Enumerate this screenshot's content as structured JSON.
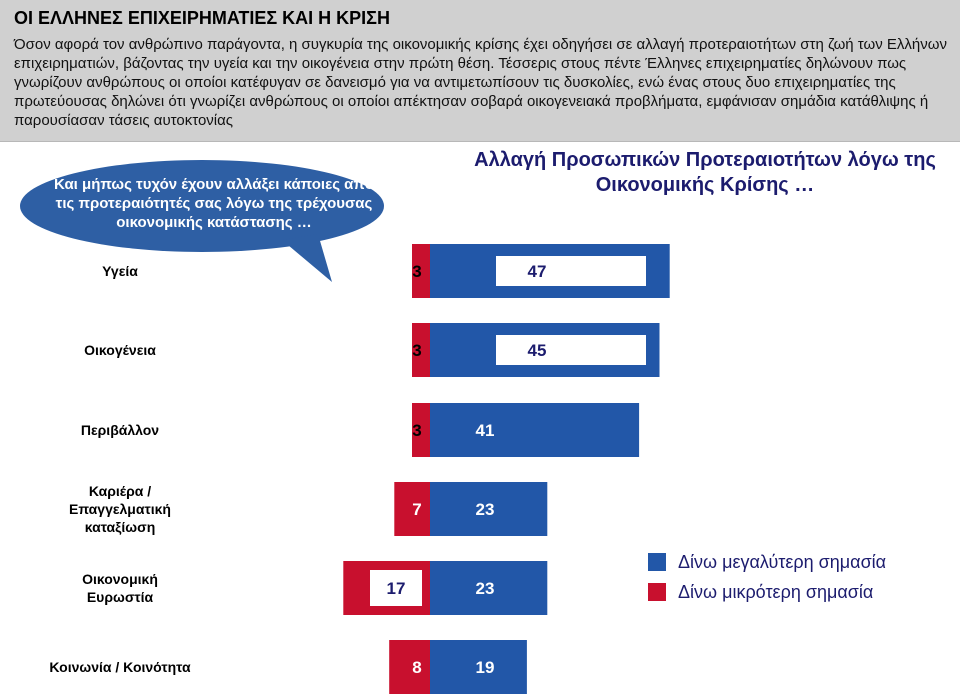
{
  "header": {
    "title": "ΟΙ ΕΛΛΗΝΕΣ ΕΠΙΧΕΙΡΗΜΑΤΙΕΣ ΚΑΙ Η ΚΡΙΣΗ",
    "paragraph1": "Όσον αφορά τον ανθρώπινο παράγοντα, η συγκυρία της οικονομικής κρίσης έχει οδηγήσει σε αλλαγή προτεραιοτήτων στη ζωή των Ελλήνων επιχειρηματιών, βάζοντας την υγεία και την οικογένεια στην πρώτη θέση.",
    "paragraph2": "Τέσσερις στους πέντε Έλληνες επιχειρηματίες δηλώνουν πως γνωρίζουν ανθρώπους οι οποίοι κατέφυγαν σε δανεισμό για να αντιμετωπίσουν τις δυσκολίες, ενώ ένας στους δυο επιχειρηματίες της πρωτεύουσας δηλώνει ότι γνωρίζει ανθρώπους οι οποίοι απέκτησαν σοβαρά οικογενειακά προβλήματα, εμφάνισαν σημάδια κατάθλιψης ή παρουσίασαν τάσεις αυτοκτονίας"
  },
  "bubble": {
    "text": "Και μήπως τυχόν έχουν αλλάξει κάποιες από τις προτεραιότητές σας λόγω της τρέχουσας οικονομικής κατάστασης …"
  },
  "colors": {
    "more": "#2257a8",
    "less": "#c8102e",
    "title": "#1c1c6e",
    "bubble": "#2e5fa4"
  },
  "chart_data": {
    "type": "bar",
    "orientation": "horizontal-diverging",
    "title": "Αλλαγή Προσωπικών Προτεραιοτήτων λόγω της Οικονομικής Κρίσης …",
    "categories": [
      "Υγεία",
      "Οικογένεια",
      "Περιβάλλον",
      "Καριέρα / Επαγγελματική καταξίωση",
      "Οικονομική Ευρωστία",
      "Κοινωνία / Κοινότητα"
    ],
    "series": [
      {
        "name": "Δίνω μεγαλύτερη σημασία",
        "values": [
          47,
          45,
          41,
          23,
          23,
          19
        ]
      },
      {
        "name": "Δίνω μικρότερη σημασία",
        "values": [
          3,
          3,
          3,
          7,
          17,
          8
        ]
      }
    ],
    "boxed_values": [
      true,
      true,
      false,
      false,
      false,
      false
    ],
    "legend_position": "right",
    "grid": false
  }
}
